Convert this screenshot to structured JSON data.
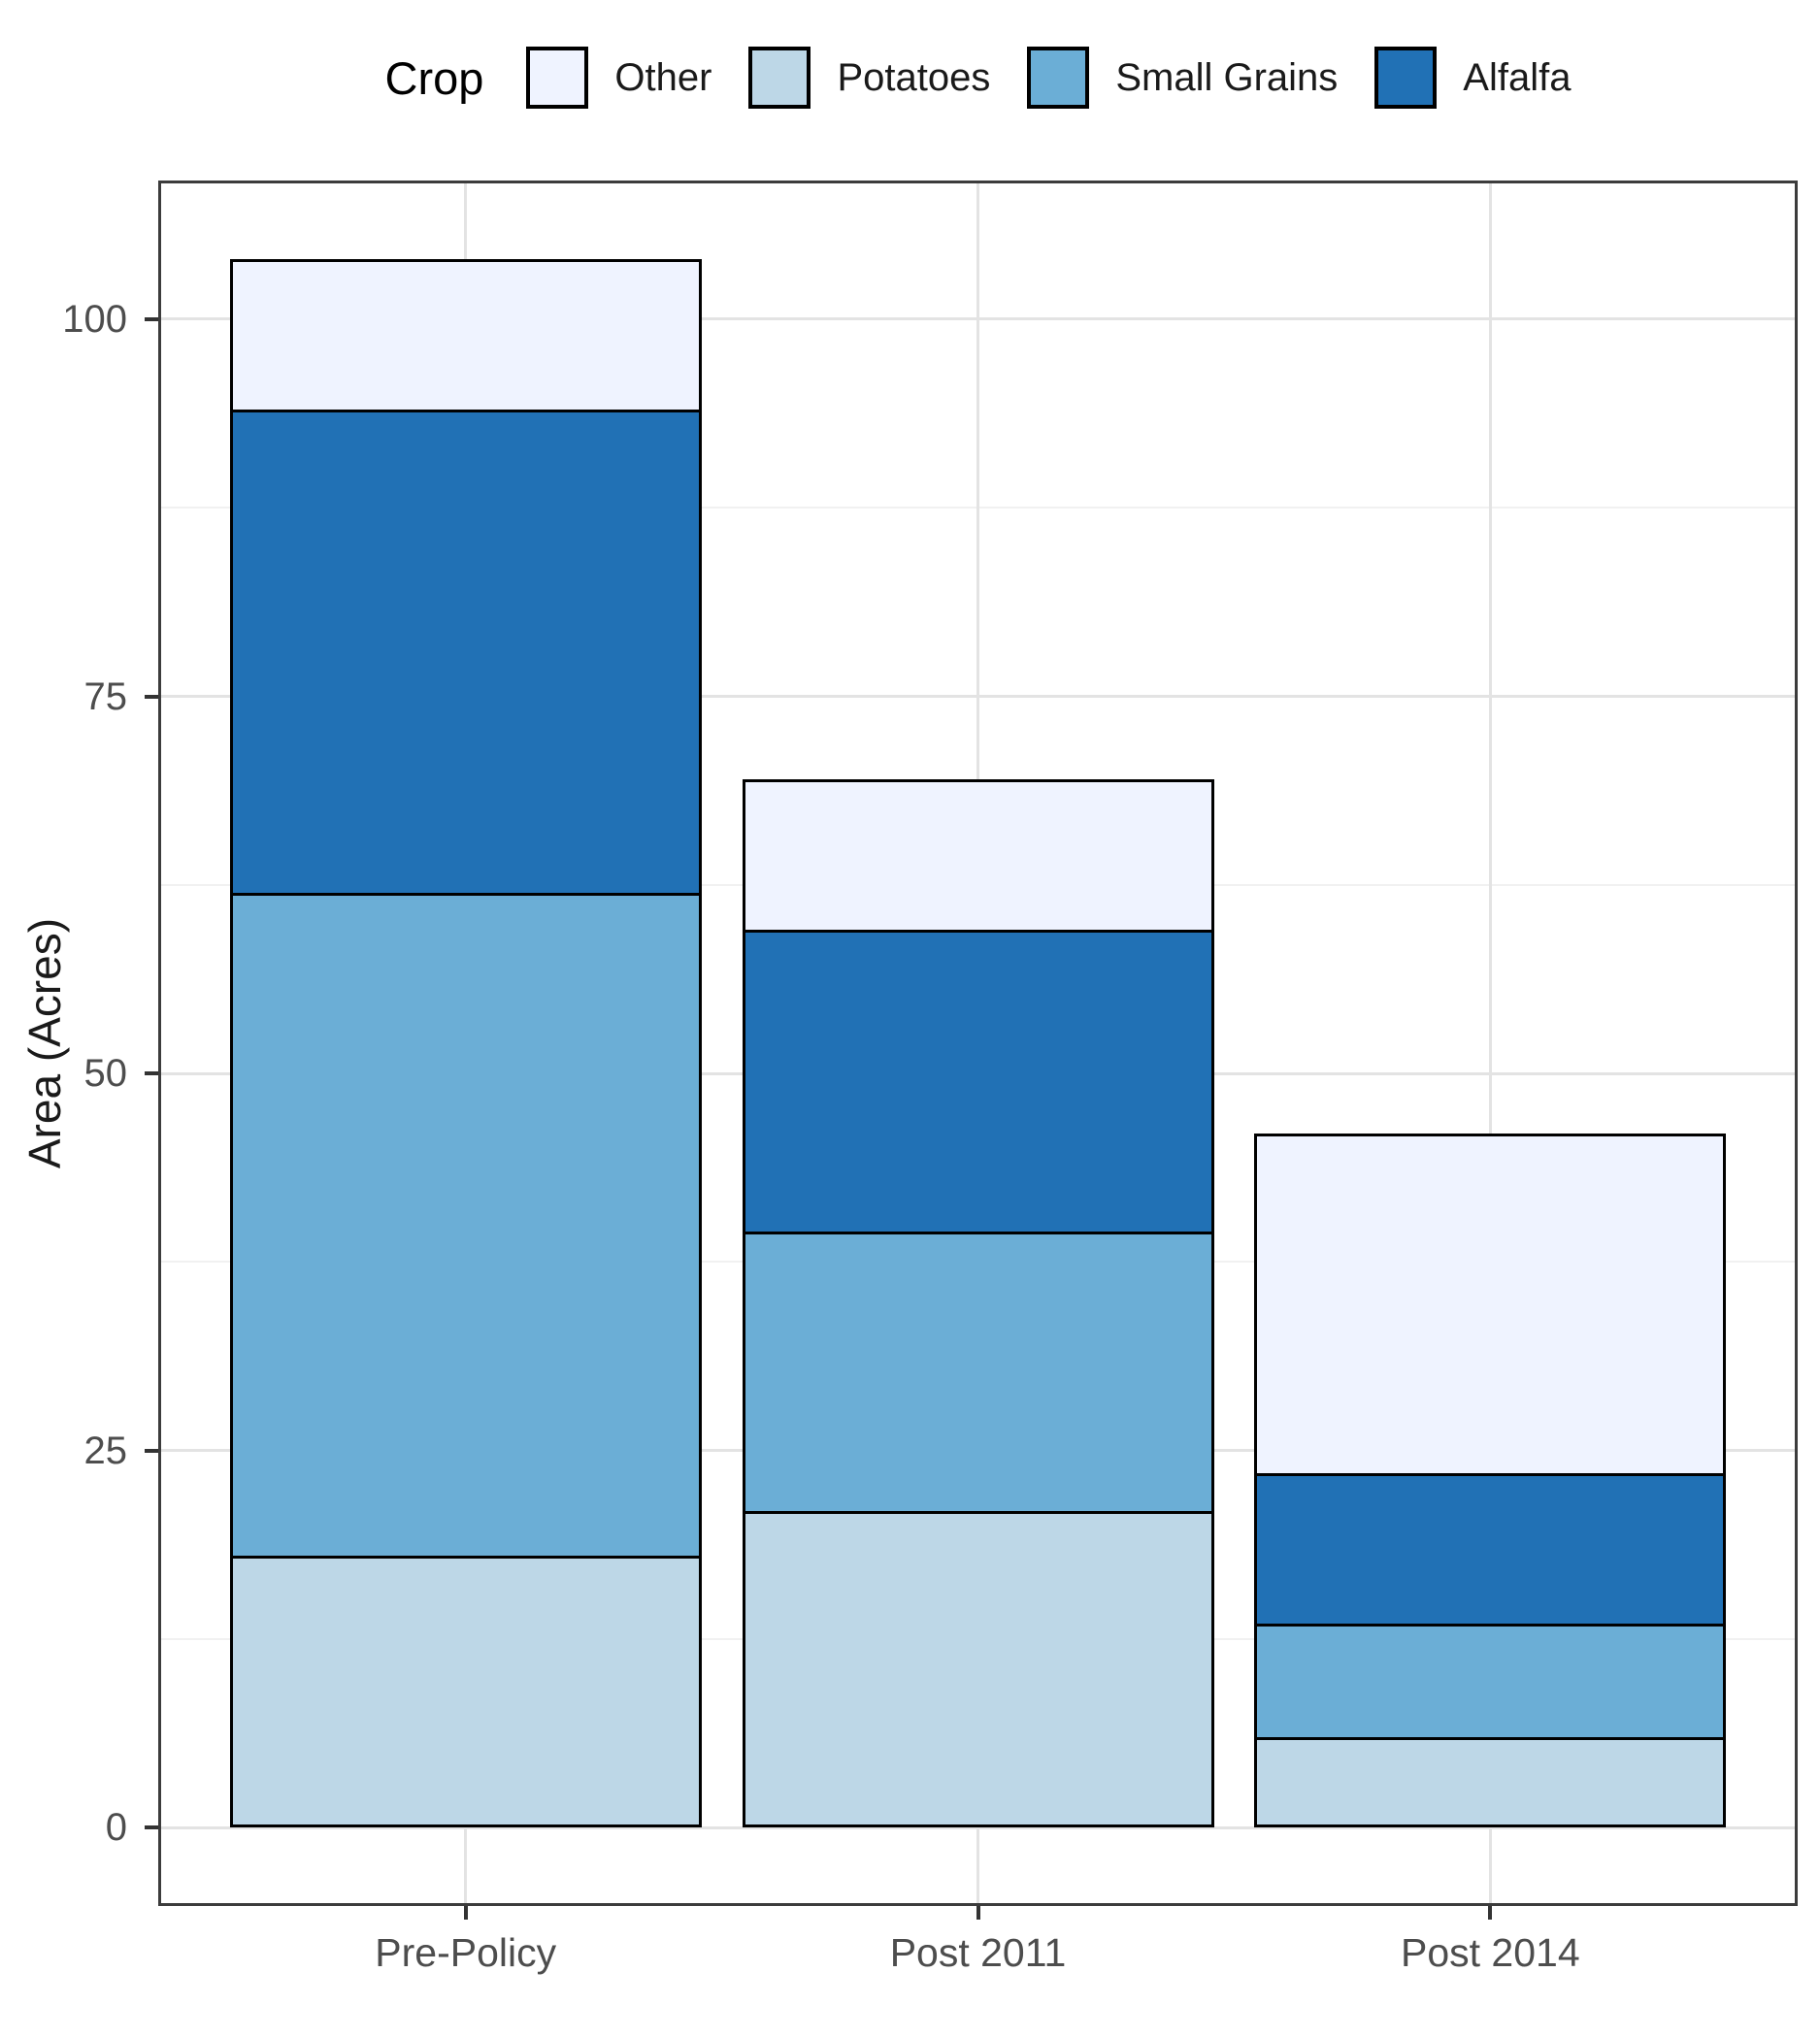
{
  "chart_data": {
    "type": "bar",
    "stacked": true,
    "orientation": "vertical",
    "legend_title": "Crop",
    "legend_position": "top",
    "legend": [
      {
        "label": "Other",
        "color": "#EFF3FF"
      },
      {
        "label": "Potatoes",
        "color": "#BDD7E7"
      },
      {
        "label": "Small Grains",
        "color": "#6BAED6"
      },
      {
        "label": "Alfalfa",
        "color": "#2171B5"
      }
    ],
    "categories": [
      "Pre-Policy",
      "Post 2011",
      "Post 2014"
    ],
    "series": [
      {
        "name": "Potatoes",
        "color": "#BDD7E7",
        "values": [
          18,
          21,
          6
        ]
      },
      {
        "name": "Small Grains",
        "color": "#6BAED6",
        "values": [
          44,
          18.5,
          7.5
        ]
      },
      {
        "name": "Alfalfa",
        "color": "#2171B5",
        "values": [
          32,
          20,
          10
        ]
      },
      {
        "name": "Other",
        "color": "#EFF3FF",
        "values": [
          10,
          10,
          22.5
        ]
      }
    ],
    "stack_totals": [
      104,
      69.5,
      46
    ],
    "bar_outline_color": "#000000",
    "xlabel": "",
    "ylabel": "Area (Acres)",
    "yticks": [
      0,
      25,
      50,
      75,
      100
    ],
    "yticks_minor": [
      12.5,
      37.5,
      62.5,
      87.5
    ],
    "ylim": [
      0,
      104
    ],
    "grid": "horizontal major + minor, vertical major at categories",
    "colors": {
      "grid_major": "#e3e3e3",
      "grid_minor": "#f1f1f1",
      "panel_border": "#3c3c3c",
      "tick": "#333333",
      "tick_label": "#4d4d4d",
      "axis_title": "#1a1a1a",
      "legend_text": "#1a1a1a",
      "background": "#ffffff"
    }
  }
}
